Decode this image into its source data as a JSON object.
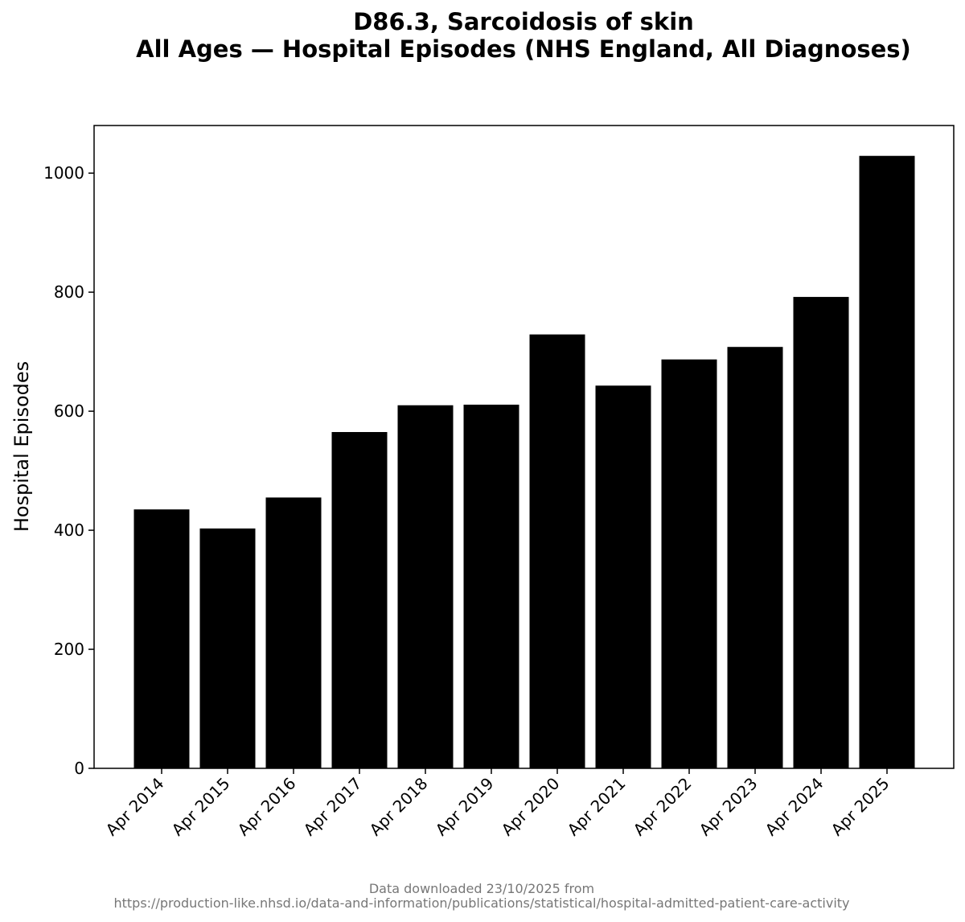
{
  "chart_data": {
    "type": "bar",
    "title": "D86.3, Sarcoidosis of skin",
    "subtitle": "All Ages — Hospital Episodes (NHS England, All Diagnoses)",
    "xlabel": "",
    "ylabel": "Hospital Episodes",
    "categories": [
      "Apr 2014",
      "Apr 2015",
      "Apr 2016",
      "Apr 2017",
      "Apr 2018",
      "Apr 2019",
      "Apr 2020",
      "Apr 2021",
      "Apr 2022",
      "Apr 2023",
      "Apr 2024",
      "Apr 2025"
    ],
    "values": [
      435,
      403,
      455,
      565,
      610,
      611,
      729,
      643,
      687,
      708,
      792,
      1029
    ],
    "ylim": [
      0,
      1080
    ],
    "yticks": [
      0,
      200,
      400,
      600,
      800,
      1000
    ],
    "grid": false,
    "bar_color": "#000000"
  },
  "footer": {
    "line1": "Data downloaded 23/10/2025 from",
    "line2": "https://production-like.nhsd.io/data-and-information/publications/statistical/hospital-admitted-patient-care-activity"
  }
}
